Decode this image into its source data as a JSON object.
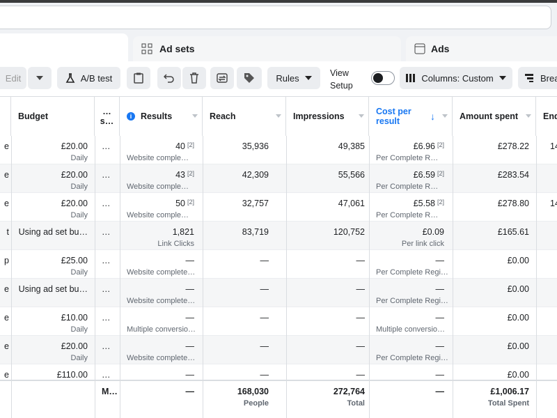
{
  "tabs": [
    "Ad sets",
    "Ads"
  ],
  "toolbar": {
    "edit": "Edit",
    "ab_test": "A/B test",
    "rules": "Rules",
    "view_setup": "View Setup",
    "columns": "Columns: Custom",
    "breakdown": "Brea"
  },
  "table": {
    "headers": [
      null,
      "Budget",
      "… s…",
      "Results",
      "Reach",
      "Impressions",
      "Cost per result",
      "Amount spent",
      "End"
    ],
    "rows": [
      [
        {
          "text": "e"
        },
        {
          "text": "£20.00",
          "sub": "Daily"
        },
        {
          "text": "…"
        },
        {
          "text": "40",
          "note": "[2]",
          "sub": "Website comple…"
        },
        {
          "text": "35,936"
        },
        {
          "text": "49,385"
        },
        {
          "text": "£6.96",
          "note": "[2]",
          "sub": "Per Complete R…"
        },
        {
          "text": "£278.22"
        },
        {
          "text": "14"
        }
      ],
      [
        {
          "text": "e"
        },
        {
          "text": "£20.00",
          "sub": "Daily"
        },
        {
          "text": "…"
        },
        {
          "text": "43",
          "note": "[2]",
          "sub": "Website comple…"
        },
        {
          "text": "42,309"
        },
        {
          "text": "55,566"
        },
        {
          "text": "£6.59",
          "note": "[2]",
          "sub": "Per Complete R…"
        },
        {
          "text": "£283.54"
        },
        null
      ],
      [
        {
          "text": "e"
        },
        {
          "text": "£20.00",
          "sub": "Daily"
        },
        {
          "text": "…"
        },
        {
          "text": "50",
          "note": "[2]",
          "sub": "Website comple…"
        },
        {
          "text": "32,757"
        },
        {
          "text": "47,061"
        },
        {
          "text": "£5.58",
          "note": "[2]",
          "sub": "Per Complete R…"
        },
        {
          "text": "£278.80"
        },
        {
          "text": "14"
        }
      ],
      [
        {
          "text": "t"
        },
        {
          "text": "Using ad set bu…"
        },
        {
          "text": "…"
        },
        {
          "text": "1,821",
          "sub": "Link Clicks"
        },
        {
          "text": "83,719"
        },
        {
          "text": "120,752"
        },
        {
          "text": "£0.09",
          "sub": "Per link click"
        },
        {
          "text": "£165.61"
        },
        null
      ],
      [
        {
          "text": "p"
        },
        {
          "text": "£25.00",
          "sub": "Daily"
        },
        {
          "text": "…"
        },
        {
          "text": "—",
          "sub": "Website complete…"
        },
        {
          "text": "—"
        },
        {
          "text": "—"
        },
        {
          "text": "—",
          "sub": "Per Complete Regi…"
        },
        {
          "text": "£0.00"
        },
        null
      ],
      [
        {
          "text": "e"
        },
        {
          "text": "Using ad set bu…"
        },
        {
          "text": "…"
        },
        {
          "text": "—",
          "sub": "Website complete…"
        },
        {
          "text": "—"
        },
        {
          "text": "—"
        },
        {
          "text": "—",
          "sub": "Per Complete Regi…"
        },
        {
          "text": "£0.00"
        },
        null
      ],
      [
        {
          "text": "e"
        },
        {
          "text": "£10.00",
          "sub": "Daily"
        },
        {
          "text": "…"
        },
        {
          "text": "—",
          "sub": "Multiple conversio…"
        },
        {
          "text": "—"
        },
        {
          "text": "—"
        },
        {
          "text": "—",
          "sub": "Multiple conversio…"
        },
        {
          "text": "£0.00"
        },
        null
      ],
      [
        {
          "text": "e"
        },
        {
          "text": "£20.00",
          "sub": "Daily"
        },
        {
          "text": "…"
        },
        {
          "text": "—",
          "sub": "Website complete…"
        },
        {
          "text": "—"
        },
        {
          "text": "—"
        },
        {
          "text": "—",
          "sub": "Per Complete Regi…"
        },
        {
          "text": "£0.00"
        },
        null
      ],
      [
        {
          "text": "e"
        },
        {
          "text": "£110.00"
        },
        {
          "text": "…"
        },
        {
          "text": "—"
        },
        {
          "text": "—"
        },
        {
          "text": "—"
        },
        {
          "text": "—"
        },
        {
          "text": "£0.00"
        },
        null
      ]
    ],
    "totals": [
      null,
      null,
      {
        "text": "M…"
      },
      {
        "text": "—"
      },
      {
        "text": "168,030",
        "sub": "People"
      },
      {
        "text": "272,764",
        "sub": "Total"
      },
      {
        "text": "—"
      },
      {
        "text": "£1,006.17",
        "sub": "Total Spent"
      },
      null
    ]
  }
}
